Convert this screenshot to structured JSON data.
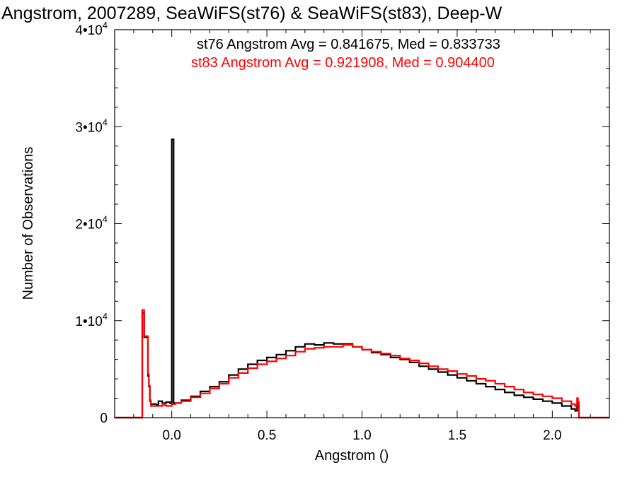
{
  "chart_data": {
    "type": "line",
    "title": "Angstrom, 2007289, SeaWiFS(st76) & SeaWiFS(st83), Deep-W",
    "xlabel": "Angstrom ()",
    "ylabel": "Number of Observations",
    "xlim": [
      -0.3,
      2.3
    ],
    "ylim": [
      0,
      40000
    ],
    "xticks": [
      "0.0",
      "0.5",
      "1.0",
      "1.5",
      "2.0"
    ],
    "xtick_values": [
      0.0,
      0.5,
      1.0,
      1.5,
      2.0
    ],
    "yticks": [
      {
        "value": 0,
        "mantissa": "0",
        "exponent": ""
      },
      {
        "value": 10000,
        "mantissa": "1•10",
        "exponent": "4"
      },
      {
        "value": 20000,
        "mantissa": "2•10",
        "exponent": "4"
      },
      {
        "value": 30000,
        "mantissa": "3•10",
        "exponent": "4"
      },
      {
        "value": 40000,
        "mantissa": "4•10",
        "exponent": "4"
      }
    ],
    "annotations": [
      {
        "text": "st76 Angstrom Avg = 0.841675, Med = 0.833733",
        "color": "#000000"
      },
      {
        "text": "st83 Angstrom Avg = 0.921908, Med = 0.904400",
        "color": "#ff0000"
      }
    ],
    "series": [
      {
        "color": "#000000",
        "style": "step",
        "points": [
          [
            -0.3,
            0
          ],
          [
            -0.16,
            0
          ],
          [
            -0.155,
            10800
          ],
          [
            -0.15,
            10800
          ],
          [
            -0.145,
            8300
          ],
          [
            -0.13,
            8300
          ],
          [
            -0.125,
            4300
          ],
          [
            -0.12,
            3200
          ],
          [
            -0.115,
            1700
          ],
          [
            -0.11,
            1400
          ],
          [
            -0.08,
            1300
          ],
          [
            -0.07,
            1700
          ],
          [
            -0.05,
            1500
          ],
          [
            -0.03,
            1600
          ],
          [
            -0.01,
            1500
          ],
          [
            0.0,
            1500
          ],
          [
            0.0,
            28700
          ],
          [
            0.01,
            28700
          ],
          [
            0.01,
            1500
          ],
          [
            0.05,
            1800
          ],
          [
            0.1,
            2200
          ],
          [
            0.15,
            2700
          ],
          [
            0.2,
            3200
          ],
          [
            0.25,
            3700
          ],
          [
            0.3,
            4400
          ],
          [
            0.35,
            5000
          ],
          [
            0.4,
            5500
          ],
          [
            0.45,
            5900
          ],
          [
            0.5,
            6200
          ],
          [
            0.55,
            6500
          ],
          [
            0.6,
            6900
          ],
          [
            0.65,
            7300
          ],
          [
            0.7,
            7600
          ],
          [
            0.75,
            7500
          ],
          [
            0.8,
            7700
          ],
          [
            0.85,
            7600
          ],
          [
            0.9,
            7600
          ],
          [
            0.95,
            7300
          ],
          [
            1.0,
            7000
          ],
          [
            1.05,
            6700
          ],
          [
            1.1,
            6500
          ],
          [
            1.15,
            6200
          ],
          [
            1.2,
            6000
          ],
          [
            1.25,
            5700
          ],
          [
            1.3,
            5300
          ],
          [
            1.35,
            5000
          ],
          [
            1.4,
            4700
          ],
          [
            1.45,
            4400
          ],
          [
            1.5,
            4100
          ],
          [
            1.55,
            3800
          ],
          [
            1.6,
            3500
          ],
          [
            1.65,
            3200
          ],
          [
            1.7,
            2900
          ],
          [
            1.75,
            2600
          ],
          [
            1.8,
            2300
          ],
          [
            1.85,
            2100
          ],
          [
            1.9,
            1900
          ],
          [
            1.95,
            1700
          ],
          [
            2.0,
            1500
          ],
          [
            2.05,
            1200
          ],
          [
            2.1,
            900
          ],
          [
            2.12,
            700
          ],
          [
            2.13,
            1400
          ],
          [
            2.135,
            1200
          ],
          [
            2.14,
            0
          ],
          [
            2.3,
            0
          ]
        ]
      },
      {
        "color": "#ff0000",
        "style": "step",
        "points": [
          [
            -0.3,
            0
          ],
          [
            -0.16,
            0
          ],
          [
            -0.155,
            11100
          ],
          [
            -0.15,
            11100
          ],
          [
            -0.145,
            8400
          ],
          [
            -0.13,
            8400
          ],
          [
            -0.125,
            4500
          ],
          [
            -0.12,
            3300
          ],
          [
            -0.115,
            1800
          ],
          [
            -0.11,
            1200
          ],
          [
            -0.08,
            1200
          ],
          [
            -0.05,
            1300
          ],
          [
            -0.03,
            1200
          ],
          [
            0.0,
            1400
          ],
          [
            0.02,
            1500
          ],
          [
            0.05,
            1700
          ],
          [
            0.1,
            2100
          ],
          [
            0.15,
            2500
          ],
          [
            0.2,
            3000
          ],
          [
            0.25,
            3500
          ],
          [
            0.3,
            4100
          ],
          [
            0.35,
            4600
          ],
          [
            0.4,
            5100
          ],
          [
            0.45,
            5500
          ],
          [
            0.5,
            5800
          ],
          [
            0.55,
            6100
          ],
          [
            0.6,
            6400
          ],
          [
            0.65,
            6800
          ],
          [
            0.7,
            7100
          ],
          [
            0.75,
            7200
          ],
          [
            0.8,
            7300
          ],
          [
            0.85,
            7300
          ],
          [
            0.9,
            7500
          ],
          [
            0.95,
            7300
          ],
          [
            1.0,
            7000
          ],
          [
            1.05,
            6800
          ],
          [
            1.1,
            6600
          ],
          [
            1.15,
            6400
          ],
          [
            1.2,
            6100
          ],
          [
            1.25,
            5900
          ],
          [
            1.3,
            5600
          ],
          [
            1.35,
            5300
          ],
          [
            1.4,
            5000
          ],
          [
            1.45,
            4800
          ],
          [
            1.5,
            4500
          ],
          [
            1.55,
            4300
          ],
          [
            1.6,
            4000
          ],
          [
            1.65,
            3800
          ],
          [
            1.7,
            3500
          ],
          [
            1.75,
            3200
          ],
          [
            1.8,
            2900
          ],
          [
            1.85,
            2600
          ],
          [
            1.9,
            2400
          ],
          [
            1.95,
            2200
          ],
          [
            2.0,
            2000
          ],
          [
            2.05,
            1700
          ],
          [
            2.1,
            1400
          ],
          [
            2.12,
            1200
          ],
          [
            2.13,
            2000
          ],
          [
            2.135,
            1600
          ],
          [
            2.14,
            0
          ],
          [
            2.3,
            0
          ]
        ]
      }
    ]
  }
}
